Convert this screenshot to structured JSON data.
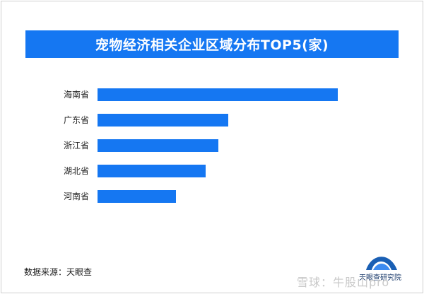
{
  "chart_data": {
    "type": "bar",
    "orientation": "horizontal",
    "title": "宠物经济相关企业区域分布TOP5(家)",
    "categories": [
      "海南省",
      "广东省",
      "浙江省",
      "湖北省",
      "河南省"
    ],
    "values": [
      340,
      185,
      171,
      153,
      111
    ],
    "xlim": [
      0,
      340
    ],
    "grid": false,
    "colors": {
      "bar": "#1577f2",
      "title_bg": "#1577f2"
    }
  },
  "source": "数据来源：天眼查",
  "watermark": "雪球：牛股山pro",
  "logo": {
    "icon": "tianyancha-logo",
    "text": "天眼查研究院"
  }
}
